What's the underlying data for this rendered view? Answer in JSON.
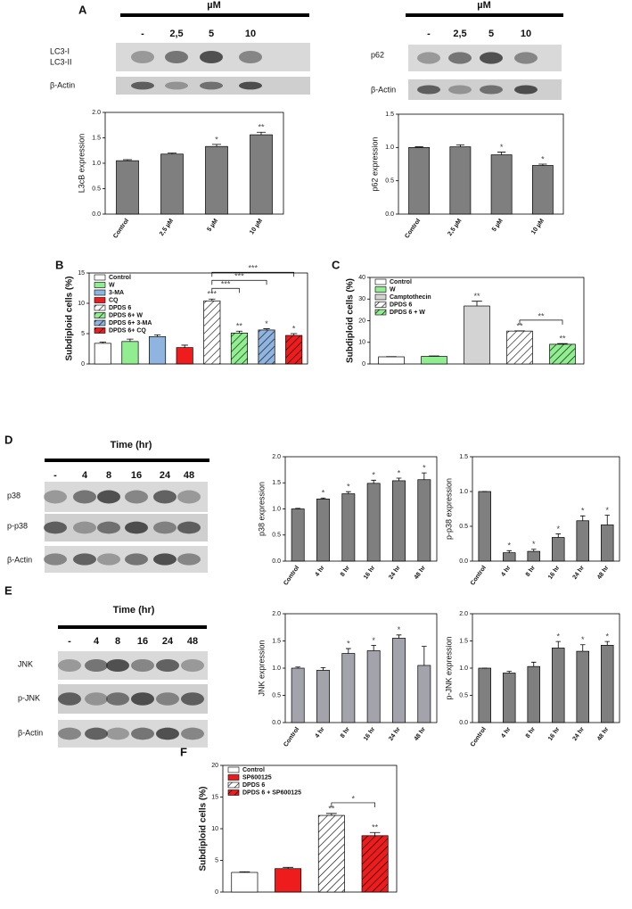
{
  "panel_letters": [
    "A",
    "B",
    "C",
    "D",
    "E",
    "F"
  ],
  "blots": [
    {
      "header": "µM",
      "lanes": [
        "-",
        "2,5",
        "5",
        "10"
      ],
      "rows": [
        "LC3-I",
        "LC3-II",
        "β-Actin"
      ]
    },
    {
      "header": "µM",
      "lanes": [
        "-",
        "2,5",
        "5",
        "10"
      ],
      "rows": [
        "p62",
        "β-Actin"
      ]
    },
    {
      "header": "Time (hr)",
      "lanes": [
        "-",
        "4",
        "8",
        "16",
        "24",
        "48"
      ],
      "rows": [
        "p38",
        "p-p38",
        "β-Actin"
      ]
    },
    {
      "header": "Time (hr)",
      "lanes": [
        "-",
        "4",
        "8",
        "16",
        "24",
        "48"
      ],
      "rows": [
        "JNK",
        "p-JNK",
        "β-Actin"
      ]
    }
  ],
  "chart_data": [
    {
      "type": "bar",
      "ylabel": "L3cB expression",
      "color": "#7f7f7f",
      "categories": [
        "Control",
        "2,5 µM",
        "5 µM",
        "10 µM"
      ],
      "values": [
        1.05,
        1.18,
        1.33,
        1.56
      ],
      "errors": [
        0.02,
        0.02,
        0.04,
        0.05
      ],
      "stars": [
        null,
        null,
        "*",
        "**"
      ],
      "ylim": [
        0,
        2
      ],
      "yticks": [
        {
          "value": 0,
          "label": "0.0"
        },
        {
          "value": 0.5,
          "label": "0.5"
        },
        {
          "value": 1,
          "label": "1.0"
        },
        {
          "value": 1.5,
          "label": "1.5"
        },
        {
          "value": 2,
          "label": "2.0"
        }
      ]
    },
    {
      "type": "bar",
      "ylabel": "p62 expression",
      "color": "#7f7f7f",
      "categories": [
        "Control",
        "2,5 µM",
        "5 µM",
        "10 µM"
      ],
      "values": [
        1.0,
        1.01,
        0.89,
        0.73
      ],
      "errors": [
        0.01,
        0.03,
        0.04,
        0.02
      ],
      "stars": [
        null,
        null,
        "*",
        "*"
      ],
      "ylim": [
        0,
        1.5
      ],
      "yticks": [
        {
          "value": 0,
          "label": "0.0"
        },
        {
          "value": 0.5,
          "label": "0.5"
        },
        {
          "value": 1,
          "label": "1.0"
        },
        {
          "value": 1.5,
          "label": "1.5"
        }
      ]
    },
    {
      "type": "bar",
      "ylabel": "Subdiploid cells (%)",
      "series": [
        {
          "name": "Control",
          "color": "#ffffff",
          "hatch": false,
          "values": [
            3.4
          ],
          "errors": [
            0.2
          ],
          "stars": [
            null
          ]
        },
        {
          "name": "W",
          "color": "#90ee90",
          "hatch": false,
          "values": [
            3.7
          ],
          "errors": [
            0.4
          ],
          "stars": [
            null
          ]
        },
        {
          "name": "3-MA",
          "color": "#8fb4e0",
          "hatch": false,
          "values": [
            4.5
          ],
          "errors": [
            0.3
          ],
          "stars": [
            null
          ]
        },
        {
          "name": "CQ",
          "color": "#ee1c1c",
          "hatch": false,
          "values": [
            2.7
          ],
          "errors": [
            0.4
          ],
          "stars": [
            null
          ]
        },
        {
          "name": "DPDS 6",
          "color": "#ffffff",
          "hatch": true,
          "values": [
            10.4
          ],
          "errors": [
            0.3
          ],
          "stars": [
            "***"
          ]
        },
        {
          "name": "DPDS 6+ W",
          "color": "#90ee90",
          "hatch": true,
          "values": [
            5.1
          ],
          "errors": [
            0.3
          ],
          "stars": [
            "**"
          ]
        },
        {
          "name": "DPDS 6+ 3-MA",
          "color": "#8fb4e0",
          "hatch": true,
          "values": [
            5.6
          ],
          "errors": [
            0.2
          ],
          "stars": [
            "*"
          ]
        },
        {
          "name": "DPDS 6+ CQ",
          "color": "#ee1c1c",
          "hatch": true,
          "values": [
            4.7
          ],
          "errors": [
            0.3
          ],
          "stars": [
            "*"
          ]
        }
      ],
      "brackets": [
        {
          "bars": [
            4,
            5
          ],
          "label": "***"
        },
        {
          "bars": [
            4,
            6
          ],
          "label": "***"
        },
        {
          "bars": [
            4,
            7
          ],
          "label": "***"
        }
      ],
      "ylim": [
        0,
        15
      ],
      "yticks": [
        0,
        5,
        10,
        15
      ]
    },
    {
      "type": "bar",
      "ylabel": "Subdiploid cells (%)",
      "series": [
        {
          "name": "Control",
          "color": "#ffffff",
          "hatch": false,
          "values": [
            3.3
          ],
          "errors": [
            0.1
          ],
          "stars": [
            null
          ]
        },
        {
          "name": "W",
          "color": "#90ee90",
          "hatch": false,
          "values": [
            3.5
          ],
          "errors": [
            0.2
          ],
          "stars": [
            null
          ]
        },
        {
          "name": "Camptothecin",
          "color": "#d3d3d3",
          "hatch": false,
          "values": [
            26.8
          ],
          "errors": [
            2.2
          ],
          "stars": [
            "**"
          ]
        },
        {
          "name": "DPDS 6",
          "color": "#ffffff",
          "hatch": true,
          "values": [
            15.2
          ],
          "errors": [
            0.1
          ],
          "stars": [
            "**"
          ]
        },
        {
          "name": "DPDS 6 + W",
          "color": "#90ee90",
          "hatch": true,
          "values": [
            9.1
          ],
          "errors": [
            0.3
          ],
          "stars": [
            "**"
          ]
        }
      ],
      "brackets": [
        {
          "bars": [
            3,
            4
          ],
          "label": "**"
        }
      ],
      "ylim": [
        0,
        40
      ],
      "yticks": [
        0,
        10,
        20,
        30,
        40
      ]
    },
    {
      "type": "bar",
      "ylabel": "p38 expression",
      "color": "#7f7f7f",
      "categories": [
        "Control",
        "4 hr",
        "8 hr",
        "16 hr",
        "24 hr",
        "48 hr"
      ],
      "values": [
        1.0,
        1.19,
        1.29,
        1.49,
        1.54,
        1.56
      ],
      "errors": [
        0.01,
        0.02,
        0.04,
        0.06,
        0.05,
        0.13
      ],
      "stars": [
        null,
        "*",
        "*",
        "*",
        "*",
        "*"
      ],
      "ylim": [
        0,
        2
      ],
      "yticks": [
        {
          "value": 0,
          "label": "0.0"
        },
        {
          "value": 0.5,
          "label": "0.5"
        },
        {
          "value": 1,
          "label": "1.0"
        },
        {
          "value": 1.5,
          "label": "1.5"
        },
        {
          "value": 2,
          "label": "2.0"
        }
      ]
    },
    {
      "type": "bar",
      "ylabel": "p-p38 expression",
      "color": "#7f7f7f",
      "categories": [
        "Control",
        "4 hr",
        "8 hr",
        "16 hr",
        "24 hr",
        "48 hr"
      ],
      "values": [
        1.0,
        0.12,
        0.14,
        0.34,
        0.58,
        0.52
      ],
      "errors": [
        0.0,
        0.03,
        0.03,
        0.05,
        0.07,
        0.14
      ],
      "stars": [
        null,
        "*",
        "*",
        "*",
        "*",
        "*"
      ],
      "ylim": [
        0,
        1.5
      ],
      "yticks": [
        {
          "value": 0,
          "label": "0.0"
        },
        {
          "value": 0.5,
          "label": "0.5"
        },
        {
          "value": 1,
          "label": "1.0"
        },
        {
          "value": 1.5,
          "label": "1.5"
        }
      ]
    },
    {
      "type": "bar",
      "ylabel": "JNK expression",
      "color": "#a3a3ab",
      "categories": [
        "Control",
        "4 hr",
        "8 hr",
        "16 hr",
        "24 hr",
        "48 hr"
      ],
      "values": [
        1.0,
        0.96,
        1.27,
        1.32,
        1.55,
        1.05
      ],
      "errors": [
        0.02,
        0.05,
        0.09,
        0.1,
        0.06,
        0.35
      ],
      "stars": [
        null,
        null,
        "*",
        "*",
        "*",
        null
      ],
      "ylim": [
        0,
        2
      ],
      "yticks": [
        {
          "value": 0,
          "label": "0.0"
        },
        {
          "value": 0.5,
          "label": "0.5"
        },
        {
          "value": 1,
          "label": "1.0"
        },
        {
          "value": 1.5,
          "label": "1.5"
        },
        {
          "value": 2,
          "label": "2.0"
        }
      ]
    },
    {
      "type": "bar",
      "ylabel": "p-JNK expression",
      "color": "#7f7f7f",
      "categories": [
        "Control",
        "4 hr",
        "8 hr",
        "16 hr",
        "24 hr",
        "48 hr"
      ],
      "values": [
        1.0,
        0.91,
        1.03,
        1.37,
        1.31,
        1.42
      ],
      "errors": [
        0.0,
        0.03,
        0.08,
        0.12,
        0.12,
        0.07
      ],
      "stars": [
        null,
        null,
        null,
        "*",
        "*",
        "*"
      ],
      "ylim": [
        0,
        2
      ],
      "yticks": [
        {
          "value": 0,
          "label": "0.0"
        },
        {
          "value": 0.5,
          "label": "0.5"
        },
        {
          "value": 1,
          "label": "1.0"
        },
        {
          "value": 1.5,
          "label": "1.5"
        },
        {
          "value": 2,
          "label": "2.0"
        }
      ]
    },
    {
      "type": "bar",
      "ylabel": "Subdiploid cells (%)",
      "series": [
        {
          "name": "Control",
          "color": "#ffffff",
          "hatch": false,
          "values": [
            3.1
          ],
          "errors": [
            0.1
          ],
          "stars": [
            null
          ]
        },
        {
          "name": "SP600125",
          "color": "#ee1c1c",
          "hatch": false,
          "values": [
            3.7
          ],
          "errors": [
            0.2
          ],
          "stars": [
            null
          ]
        },
        {
          "name": "DPDS 6",
          "color": "#ffffff",
          "hatch": true,
          "values": [
            12.1
          ],
          "errors": [
            0.3
          ],
          "stars": [
            "**"
          ]
        },
        {
          "name": "DPDS 6 + SP600125",
          "color": "#ee1c1c",
          "hatch": true,
          "values": [
            8.9
          ],
          "errors": [
            0.5
          ],
          "stars": [
            "**"
          ]
        }
      ],
      "brackets": [
        {
          "bars": [
            2,
            3
          ],
          "label": "*"
        }
      ],
      "ylim": [
        0,
        20
      ],
      "yticks": [
        0,
        5,
        10,
        15,
        20
      ]
    }
  ]
}
